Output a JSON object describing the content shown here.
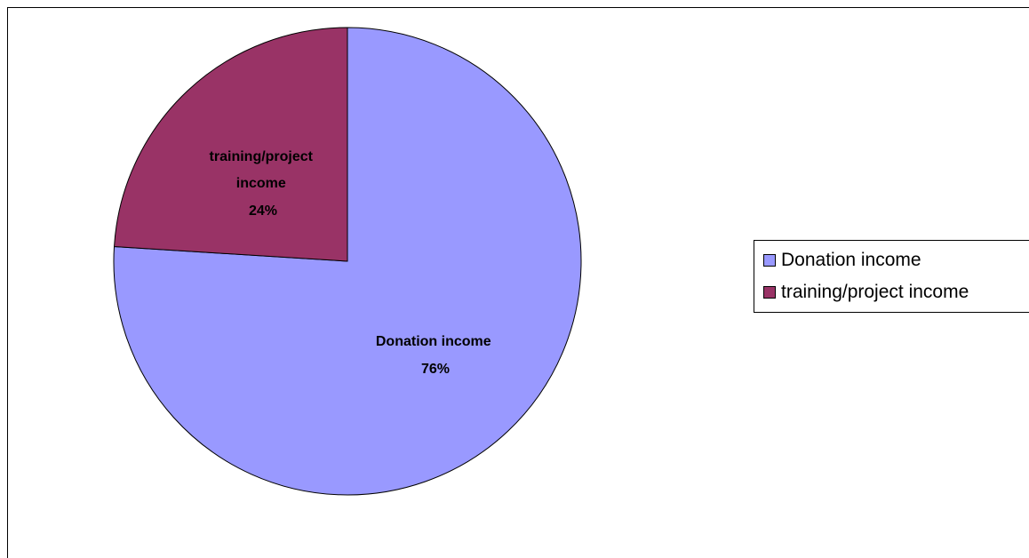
{
  "chart_data": {
    "type": "pie",
    "title": "",
    "categories": [
      "Donation income",
      "training/project income"
    ],
    "values": [
      76,
      24
    ],
    "unit": "%",
    "colors": [
      "#9999ff",
      "#993366"
    ],
    "data_labels": [
      {
        "lines": [
          "Donation income",
          "76%"
        ]
      },
      {
        "lines": [
          "training/project",
          "income",
          "24%"
        ]
      }
    ],
    "legend": {
      "placement": "right",
      "entries": [
        "Donation income",
        "training/project income"
      ]
    },
    "start_angle": "12 o'clock",
    "direction": "clockwise"
  }
}
